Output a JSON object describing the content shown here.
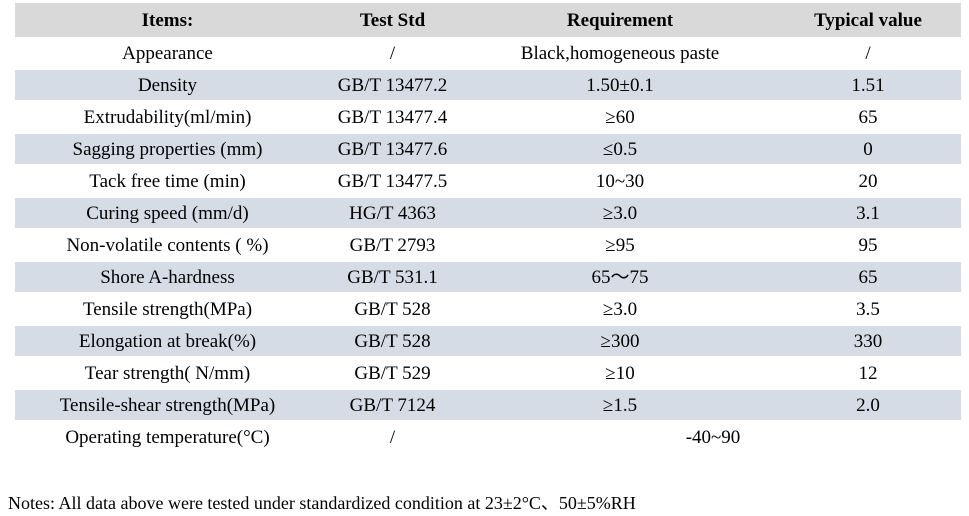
{
  "table": {
    "header": {
      "items": "Items:",
      "test_std": "Test Std",
      "requirement": "Requirement",
      "typical_value": "Typical value"
    },
    "rows": [
      {
        "item": "Appearance",
        "test_std": "/",
        "requirement": "Black,homogeneous paste",
        "typical_value": "/",
        "merged_requirement": false
      },
      {
        "item": "Density",
        "test_std": "GB/T 13477.2",
        "requirement": "1.50±0.1",
        "typical_value": "1.51",
        "merged_requirement": false
      },
      {
        "item": "Extrudability(ml/min)",
        "test_std": "GB/T 13477.4",
        "requirement": "≥60",
        "typical_value": "65",
        "merged_requirement": false
      },
      {
        "item": "Sagging properties (mm)",
        "test_std": "GB/T 13477.6",
        "requirement": "≤0.5",
        "typical_value": "0",
        "merged_requirement": false
      },
      {
        "item": "Tack free time (min)",
        "test_std": "GB/T 13477.5",
        "requirement": "10~30",
        "typical_value": "20",
        "merged_requirement": false
      },
      {
        "item": "Curing speed (mm/d)",
        "test_std": "HG/T 4363",
        "requirement": "≥3.0",
        "typical_value": "3.1",
        "merged_requirement": false
      },
      {
        "item": "Non-volatile contents ( %)",
        "test_std": "GB/T 2793",
        "requirement": "≥95",
        "typical_value": "95",
        "merged_requirement": false
      },
      {
        "item": "Shore A-hardness",
        "test_std": "GB/T 531.1",
        "requirement": "65～75",
        "typical_value": "65",
        "merged_requirement": false
      },
      {
        "item": "Tensile strength(MPa)",
        "test_std": "GB/T 528",
        "requirement": "≥3.0",
        "typical_value": "3.5",
        "merged_requirement": false
      },
      {
        "item": "Elongation at break(%)",
        "test_std": "GB/T 528",
        "requirement": "≥300",
        "typical_value": "330",
        "merged_requirement": false
      },
      {
        "item": "Tear strength( N/mm)",
        "test_std": "GB/T 529",
        "requirement": "≥10",
        "typical_value": "12",
        "merged_requirement": false
      },
      {
        "item": "Tensile-shear strength(MPa)",
        "test_std": "GB/T 7124",
        "requirement": "≥1.5",
        "typical_value": "2.0",
        "merged_requirement": false
      },
      {
        "item": "Operating temperature(°C)",
        "test_std": "/",
        "requirement": "-40~90",
        "typical_value": "",
        "merged_requirement": true
      }
    ]
  },
  "notes": "Notes: All data above were tested under standardized condition at 23±2°C、50±5%RH",
  "colors": {
    "header_bg": "#d9d9d9",
    "shaded_row_bg": "#d5dce5",
    "text": "#000000"
  }
}
